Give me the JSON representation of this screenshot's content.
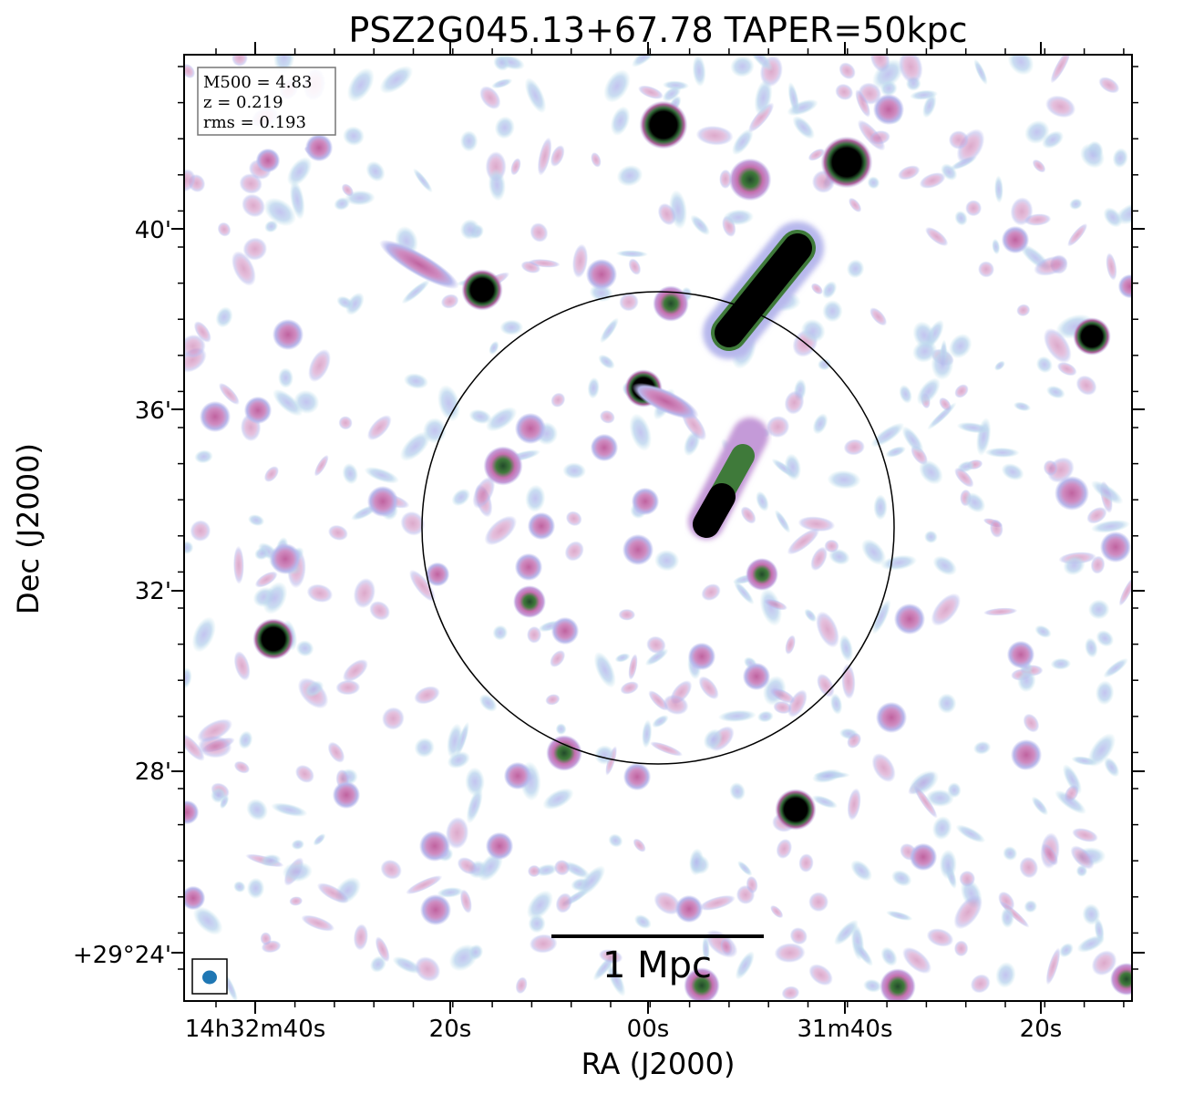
{
  "title": "PSZ2G045.13+67.78 TAPER=50kpc",
  "xlabel": "RA (J2000)",
  "ylabel": "Dec (J2000)",
  "x_ticks": [
    "14h32m40s",
    "20s",
    "00s",
    "31m40s",
    "20s"
  ],
  "y_ticks": [
    "40'",
    "36'",
    "32'",
    "28'",
    "+29°24'"
  ],
  "info": {
    "line1": "M500 = 4.83",
    "line2": "z = 0.219",
    "line3": "rms = 0.193"
  },
  "scalebar_label": "1 Mpc",
  "colors": {
    "faint": "#bfe3ea",
    "low": "#b7b8ec",
    "mid": "#c46fae",
    "high": "#3f7a3a",
    "peak": "#000000",
    "beam": "#1f77b4"
  },
  "sources": [
    {
      "ra": "14h31m58s",
      "dec": "+29°41.8'",
      "kind": "compact-bright"
    },
    {
      "ra": "14h31m40s",
      "dec": "+29°41.5'",
      "kind": "compact-bright"
    },
    {
      "ra": "14h31m52s",
      "dec": "+29°38.6'",
      "kind": "extended-jet-bright"
    },
    {
      "ra": "14h32m14s",
      "dec": "+29°38.6'",
      "kind": "compact-bright"
    },
    {
      "ra": "14h31m59s",
      "dec": "+29°36.4'",
      "kind": "compact-medium"
    },
    {
      "ra": "14h31m54s",
      "dec": "+29°34.3'",
      "kind": "extended-tail-bright"
    },
    {
      "ra": "14h32m38s",
      "dec": "+29°30.9'",
      "kind": "compact-bright"
    },
    {
      "ra": "14h31m43s",
      "dec": "+29°27.2'",
      "kind": "compact-bright"
    },
    {
      "ra": "14h31m15s",
      "dec": "+29°37.6'",
      "kind": "compact-medium"
    }
  ]
}
